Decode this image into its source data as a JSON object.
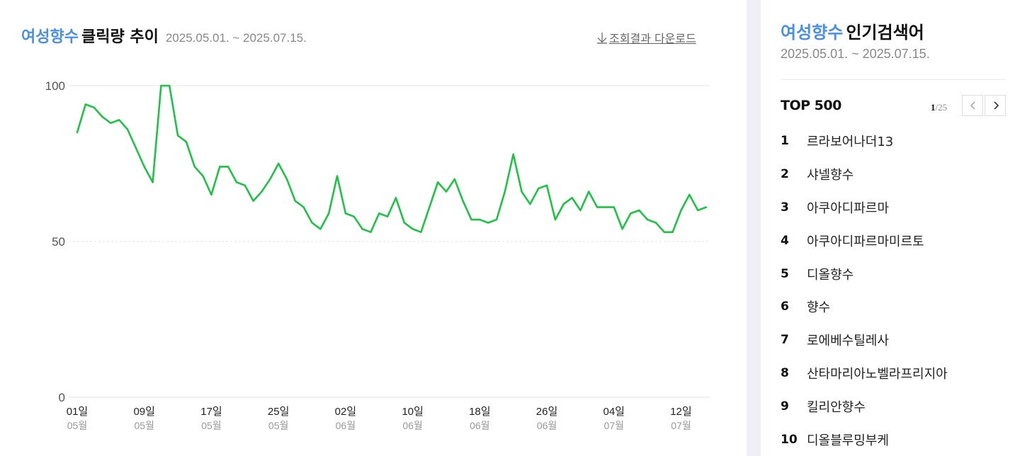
{
  "left": {
    "keyword": "여성향수",
    "title": "클릭량 추이",
    "range": "2025.05.01. ~ 2025.07.15.",
    "download_label": "조회결과 다운로드"
  },
  "right": {
    "keyword": "여성향수",
    "title": "인기검색어",
    "range": "2025.05.01. ~ 2025.07.15.",
    "list_title": "TOP 500",
    "page_current": "1",
    "page_total": "/25",
    "items": [
      {
        "rank": "1",
        "term": "르라보어나더13"
      },
      {
        "rank": "2",
        "term": "샤넬향수"
      },
      {
        "rank": "3",
        "term": "아쿠아디파르마"
      },
      {
        "rank": "4",
        "term": "아쿠아디파르마미르토"
      },
      {
        "rank": "5",
        "term": "디올향수"
      },
      {
        "rank": "6",
        "term": "향수"
      },
      {
        "rank": "7",
        "term": "로에베수틸레사"
      },
      {
        "rank": "8",
        "term": "산타마리아노벨라프리지아"
      },
      {
        "rank": "9",
        "term": "킬리안향수"
      },
      {
        "rank": "10",
        "term": "디올블루밍부케"
      }
    ]
  },
  "colors": {
    "accent": "#4a90e2",
    "line": "#1ec346"
  },
  "chart_data": {
    "type": "line",
    "title": "",
    "xlabel": "",
    "ylabel": "",
    "ylim": [
      0,
      100
    ],
    "yticks": [
      "0",
      "50",
      "100"
    ],
    "grid": true,
    "x": [
      "05.01",
      "05.02",
      "05.03",
      "05.04",
      "05.05",
      "05.06",
      "05.07",
      "05.08",
      "05.09",
      "05.10",
      "05.11",
      "05.12",
      "05.13",
      "05.14",
      "05.15",
      "05.16",
      "05.17",
      "05.18",
      "05.19",
      "05.20",
      "05.21",
      "05.22",
      "05.23",
      "05.24",
      "05.25",
      "05.26",
      "05.27",
      "05.28",
      "05.29",
      "05.30",
      "05.31",
      "06.01",
      "06.02",
      "06.03",
      "06.04",
      "06.05",
      "06.06",
      "06.07",
      "06.08",
      "06.09",
      "06.10",
      "06.11",
      "06.12",
      "06.13",
      "06.14",
      "06.15",
      "06.16",
      "06.17",
      "06.18",
      "06.19",
      "06.20",
      "06.21",
      "06.22",
      "06.23",
      "06.24",
      "06.25",
      "06.26",
      "06.27",
      "06.28",
      "06.29",
      "06.30",
      "07.01",
      "07.02",
      "07.03",
      "07.04",
      "07.05",
      "07.06",
      "07.07",
      "07.08",
      "07.09",
      "07.10",
      "07.11",
      "07.12",
      "07.13",
      "07.14",
      "07.15"
    ],
    "x_ticks": [
      {
        "day": "01일",
        "month": "05월"
      },
      {
        "day": "09일",
        "month": "05월"
      },
      {
        "day": "17일",
        "month": "05월"
      },
      {
        "day": "25일",
        "month": "05월"
      },
      {
        "day": "02일",
        "month": "06월"
      },
      {
        "day": "10일",
        "month": "06월"
      },
      {
        "day": "18일",
        "month": "06월"
      },
      {
        "day": "26일",
        "month": "06월"
      },
      {
        "day": "04일",
        "month": "07월"
      },
      {
        "day": "12일",
        "month": "07월"
      }
    ],
    "values": [
      85,
      94,
      93,
      90,
      88,
      89,
      86,
      80,
      74,
      69,
      100,
      100,
      84,
      82,
      74,
      71,
      65,
      74,
      74,
      69,
      68,
      63,
      66,
      70,
      75,
      70,
      63,
      61,
      56,
      54,
      59,
      71,
      59,
      58,
      54,
      53,
      59,
      58,
      64,
      56,
      54,
      53,
      61,
      69,
      66,
      70,
      63,
      57,
      57,
      56,
      57,
      66,
      78,
      66,
      62,
      67,
      68,
      57,
      62,
      64,
      60,
      66,
      61,
      61,
      61,
      54,
      59,
      60,
      57,
      56,
      53,
      53,
      60,
      65,
      60,
      61
    ]
  }
}
